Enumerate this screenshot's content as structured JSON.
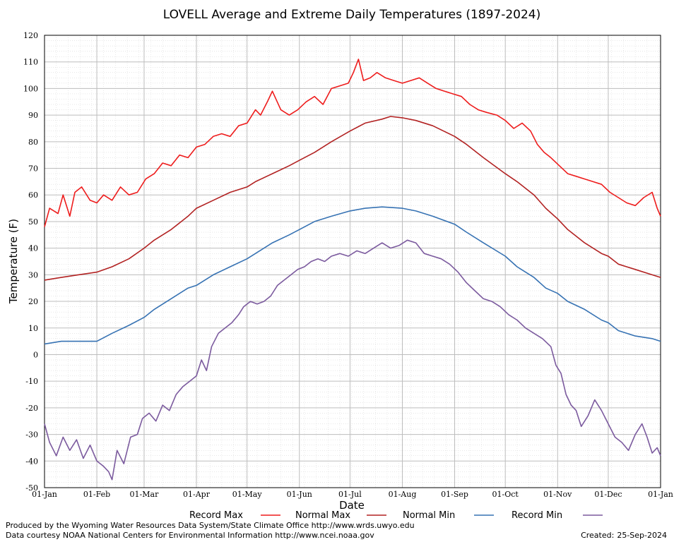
{
  "chart_data": {
    "type": "line",
    "title": "LOVELL Average and Extreme Daily Temperatures (1897-2024)",
    "xlabel": "Date",
    "ylabel": "Temperature (F)",
    "ylim": [
      -50,
      120
    ],
    "yticks": [
      120,
      110,
      100,
      90,
      80,
      70,
      60,
      50,
      40,
      30,
      20,
      10,
      0,
      -10,
      -20,
      -30,
      -40,
      -50
    ],
    "xlim": [
      "01-Jan",
      "01-Jan"
    ],
    "xticks": [
      {
        "day": 0,
        "label": "01-Jan"
      },
      {
        "day": 31,
        "label": "01-Feb"
      },
      {
        "day": 59,
        "label": "01-Mar"
      },
      {
        "day": 90,
        "label": "01-Apr"
      },
      {
        "day": 120,
        "label": "01-May"
      },
      {
        "day": 151,
        "label": "01-Jun"
      },
      {
        "day": 181,
        "label": "01-Jul"
      },
      {
        "day": 212,
        "label": "01-Aug"
      },
      {
        "day": 243,
        "label": "01-Sep"
      },
      {
        "day": 273,
        "label": "01-Oct"
      },
      {
        "day": 304,
        "label": "01-Nov"
      },
      {
        "day": 334,
        "label": "01-Dec"
      },
      {
        "day": 365,
        "label": "01-Jan"
      }
    ],
    "grid": true,
    "legend_position": "bottom",
    "series": [
      {
        "name": "Record Max",
        "color": "#ee1c1c",
        "points": [
          [
            0,
            48
          ],
          [
            3,
            55
          ],
          [
            8,
            53
          ],
          [
            11,
            60
          ],
          [
            15,
            52
          ],
          [
            18,
            61
          ],
          [
            22,
            63
          ],
          [
            27,
            58
          ],
          [
            31,
            57
          ],
          [
            35,
            60
          ],
          [
            40,
            58
          ],
          [
            45,
            63
          ],
          [
            50,
            60
          ],
          [
            55,
            61
          ],
          [
            60,
            66
          ],
          [
            65,
            68
          ],
          [
            70,
            72
          ],
          [
            75,
            71
          ],
          [
            80,
            75
          ],
          [
            85,
            74
          ],
          [
            90,
            78
          ],
          [
            95,
            79
          ],
          [
            100,
            82
          ],
          [
            105,
            83
          ],
          [
            110,
            82
          ],
          [
            115,
            86
          ],
          [
            120,
            87
          ],
          [
            125,
            92
          ],
          [
            128,
            90
          ],
          [
            132,
            95
          ],
          [
            135,
            99
          ],
          [
            140,
            92
          ],
          [
            145,
            90
          ],
          [
            150,
            92
          ],
          [
            155,
            95
          ],
          [
            160,
            97
          ],
          [
            165,
            94
          ],
          [
            170,
            100
          ],
          [
            175,
            101
          ],
          [
            180,
            102
          ],
          [
            183,
            106
          ],
          [
            186,
            111
          ],
          [
            189,
            103
          ],
          [
            193,
            104
          ],
          [
            197,
            106
          ],
          [
            202,
            104
          ],
          [
            207,
            103
          ],
          [
            212,
            102
          ],
          [
            217,
            103
          ],
          [
            222,
            104
          ],
          [
            227,
            102
          ],
          [
            232,
            100
          ],
          [
            237,
            99
          ],
          [
            242,
            98
          ],
          [
            247,
            97
          ],
          [
            252,
            94
          ],
          [
            257,
            92
          ],
          [
            262,
            91
          ],
          [
            268,
            90
          ],
          [
            273,
            88
          ],
          [
            278,
            85
          ],
          [
            283,
            87
          ],
          [
            288,
            84
          ],
          [
            292,
            79
          ],
          [
            296,
            76
          ],
          [
            300,
            74
          ],
          [
            305,
            71
          ],
          [
            310,
            68
          ],
          [
            315,
            67
          ],
          [
            320,
            66
          ],
          [
            325,
            65
          ],
          [
            330,
            64
          ],
          [
            335,
            61
          ],
          [
            340,
            59
          ],
          [
            345,
            57
          ],
          [
            350,
            56
          ],
          [
            355,
            59
          ],
          [
            360,
            61
          ],
          [
            363,
            55
          ],
          [
            365,
            52
          ]
        ]
      },
      {
        "name": "Normal Max",
        "color": "#b22222",
        "points": [
          [
            0,
            28
          ],
          [
            10,
            29
          ],
          [
            20,
            30
          ],
          [
            31,
            31
          ],
          [
            40,
            33
          ],
          [
            50,
            36
          ],
          [
            59,
            40
          ],
          [
            65,
            43
          ],
          [
            75,
            47
          ],
          [
            85,
            52
          ],
          [
            90,
            55
          ],
          [
            100,
            58
          ],
          [
            110,
            61
          ],
          [
            120,
            63
          ],
          [
            125,
            65
          ],
          [
            135,
            68
          ],
          [
            145,
            71
          ],
          [
            151,
            73
          ],
          [
            160,
            76
          ],
          [
            170,
            80
          ],
          [
            181,
            84
          ],
          [
            190,
            87
          ],
          [
            200,
            88.5
          ],
          [
            205,
            89.5
          ],
          [
            212,
            89
          ],
          [
            220,
            88
          ],
          [
            230,
            86
          ],
          [
            243,
            82
          ],
          [
            250,
            79
          ],
          [
            260,
            74
          ],
          [
            273,
            68
          ],
          [
            280,
            65
          ],
          [
            290,
            60
          ],
          [
            297,
            55
          ],
          [
            304,
            51
          ],
          [
            310,
            47
          ],
          [
            320,
            42
          ],
          [
            330,
            38
          ],
          [
            334,
            37
          ],
          [
            340,
            34
          ],
          [
            350,
            32
          ],
          [
            360,
            30
          ],
          [
            365,
            29
          ]
        ]
      },
      {
        "name": "Normal Min",
        "color": "#3672b3",
        "points": [
          [
            0,
            4
          ],
          [
            10,
            5
          ],
          [
            20,
            5
          ],
          [
            31,
            5
          ],
          [
            40,
            8
          ],
          [
            50,
            11
          ],
          [
            59,
            14
          ],
          [
            65,
            17
          ],
          [
            75,
            21
          ],
          [
            85,
            25
          ],
          [
            90,
            26
          ],
          [
            100,
            30
          ],
          [
            110,
            33
          ],
          [
            120,
            36
          ],
          [
            125,
            38
          ],
          [
            135,
            42
          ],
          [
            145,
            45
          ],
          [
            151,
            47
          ],
          [
            160,
            50
          ],
          [
            170,
            52
          ],
          [
            181,
            54
          ],
          [
            190,
            55
          ],
          [
            200,
            55.5
          ],
          [
            212,
            55
          ],
          [
            220,
            54
          ],
          [
            230,
            52
          ],
          [
            243,
            49
          ],
          [
            250,
            46
          ],
          [
            260,
            42
          ],
          [
            273,
            37
          ],
          [
            280,
            33
          ],
          [
            290,
            29
          ],
          [
            297,
            25
          ],
          [
            304,
            23
          ],
          [
            310,
            20
          ],
          [
            320,
            17
          ],
          [
            330,
            13
          ],
          [
            334,
            12
          ],
          [
            340,
            9
          ],
          [
            350,
            7
          ],
          [
            360,
            6
          ],
          [
            365,
            5
          ]
        ]
      },
      {
        "name": "Record Min",
        "color": "#7b5a9e",
        "points": [
          [
            0,
            -26
          ],
          [
            3,
            -33
          ],
          [
            7,
            -38
          ],
          [
            11,
            -31
          ],
          [
            15,
            -36
          ],
          [
            19,
            -32
          ],
          [
            23,
            -39
          ],
          [
            27,
            -34
          ],
          [
            31,
            -40
          ],
          [
            35,
            -42
          ],
          [
            38,
            -44
          ],
          [
            40,
            -47
          ],
          [
            43,
            -36
          ],
          [
            47,
            -41
          ],
          [
            51,
            -31
          ],
          [
            55,
            -30
          ],
          [
            58,
            -24
          ],
          [
            62,
            -22
          ],
          [
            66,
            -25
          ],
          [
            70,
            -19
          ],
          [
            74,
            -21
          ],
          [
            78,
            -15
          ],
          [
            82,
            -12
          ],
          [
            86,
            -10
          ],
          [
            90,
            -8
          ],
          [
            93,
            -2
          ],
          [
            96,
            -6
          ],
          [
            99,
            3
          ],
          [
            103,
            8
          ],
          [
            107,
            10
          ],
          [
            111,
            12
          ],
          [
            115,
            15
          ],
          [
            118,
            18
          ],
          [
            122,
            20
          ],
          [
            126,
            19
          ],
          [
            130,
            20
          ],
          [
            134,
            22
          ],
          [
            138,
            26
          ],
          [
            142,
            28
          ],
          [
            146,
            30
          ],
          [
            150,
            32
          ],
          [
            154,
            33
          ],
          [
            158,
            35
          ],
          [
            162,
            36
          ],
          [
            166,
            35
          ],
          [
            170,
            37
          ],
          [
            175,
            38
          ],
          [
            180,
            37
          ],
          [
            185,
            39
          ],
          [
            190,
            38
          ],
          [
            195,
            40
          ],
          [
            200,
            42
          ],
          [
            205,
            40
          ],
          [
            210,
            41
          ],
          [
            215,
            43
          ],
          [
            220,
            42
          ],
          [
            225,
            38
          ],
          [
            230,
            37
          ],
          [
            235,
            36
          ],
          [
            240,
            34
          ],
          [
            245,
            31
          ],
          [
            250,
            27
          ],
          [
            255,
            24
          ],
          [
            260,
            21
          ],
          [
            265,
            20
          ],
          [
            270,
            18
          ],
          [
            275,
            15
          ],
          [
            280,
            13
          ],
          [
            285,
            10
          ],
          [
            290,
            8
          ],
          [
            295,
            6
          ],
          [
            300,
            3
          ],
          [
            303,
            -4
          ],
          [
            306,
            -7
          ],
          [
            309,
            -15
          ],
          [
            312,
            -19
          ],
          [
            315,
            -21
          ],
          [
            318,
            -27
          ],
          [
            322,
            -23
          ],
          [
            326,
            -17
          ],
          [
            330,
            -21
          ],
          [
            334,
            -26
          ],
          [
            338,
            -31
          ],
          [
            342,
            -33
          ],
          [
            346,
            -36
          ],
          [
            350,
            -30
          ],
          [
            354,
            -26
          ],
          [
            357,
            -31
          ],
          [
            360,
            -37
          ],
          [
            363,
            -35
          ],
          [
            365,
            -38
          ]
        ]
      }
    ]
  },
  "legend": [
    {
      "label": "Record Max",
      "color": "#ee1c1c"
    },
    {
      "label": "Normal Max",
      "color": "#b22222"
    },
    {
      "label": "Normal Min",
      "color": "#3672b3"
    },
    {
      "label": "Record Min",
      "color": "#7b5a9e"
    }
  ],
  "footer": {
    "line1": "Produced by the Wyoming Water Resources Data System/State Climate Office http://www.wrds.uwyo.edu",
    "line2": "Data courtesy NOAA National Centers for Environmental Information http://www.ncei.noaa.gov",
    "created_label": "Created:",
    "created_date": "25-Sep-2024"
  }
}
